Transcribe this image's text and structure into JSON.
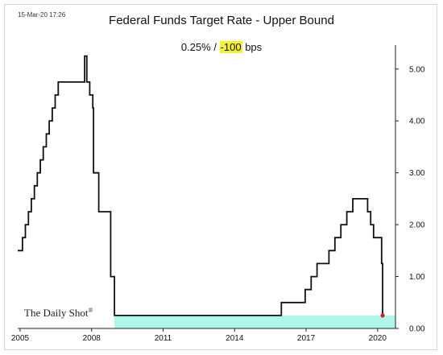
{
  "header": {
    "timestamp": "15-Mar-20 17:26",
    "title": "Federal Funds Target Rate - Upper Bound",
    "subtitle_value": "0.25%",
    "subtitle_sep": " / ",
    "subtitle_change": "-100",
    "subtitle_unit": " bps"
  },
  "brand": "The Daily Shot",
  "brand_mark": "®",
  "colors": {
    "line": "#111111",
    "band": "#aef5ea",
    "endpoint": "#cc2222",
    "highlight": "#f5f232"
  },
  "chart_data": {
    "type": "line",
    "title": "Federal Funds Target Rate - Upper Bound",
    "xlabel": "",
    "ylabel": "",
    "xlim": [
      2004.9,
      2020.75
    ],
    "ylim": [
      0,
      5.4
    ],
    "y_axis_position": "right",
    "x_ticks": [
      2005,
      2008,
      2011,
      2014,
      2017,
      2020
    ],
    "y_ticks": [
      0,
      1,
      2,
      3,
      4,
      5
    ],
    "y_tick_labels": [
      "0.00",
      "1.00",
      "2.00",
      "3.00",
      "4.00",
      "5.00"
    ],
    "grid": false,
    "shaded_band": {
      "y0": 0,
      "y1": 0.25,
      "x0": 2008.96,
      "x1": 2020.75
    },
    "series": [
      {
        "step": true,
        "x": [
          2004.9,
          2005.1,
          2005.22,
          2005.35,
          2005.47,
          2005.6,
          2005.72,
          2005.85,
          2005.97,
          2006.1,
          2006.22,
          2006.35,
          2006.47,
          2006.6,
          2007.71,
          2007.8,
          2007.92,
          2008.05,
          2008.08,
          2008.3,
          2008.8,
          2008.96,
          2015.96,
          2016.96,
          2017.21,
          2017.46,
          2017.96,
          2018.21,
          2018.46,
          2018.71,
          2018.96,
          2019.58,
          2019.71,
          2019.83,
          2020.17,
          2020.21
        ],
        "y": [
          1.5,
          1.75,
          2.0,
          2.25,
          2.5,
          2.75,
          3.0,
          3.25,
          3.5,
          3.75,
          4.0,
          4.25,
          4.5,
          4.75,
          5.25,
          4.75,
          4.5,
          4.25,
          3.0,
          2.25,
          1.0,
          0.25,
          0.5,
          0.75,
          1.0,
          1.25,
          1.5,
          1.75,
          2.0,
          2.25,
          2.5,
          2.25,
          2.0,
          1.75,
          1.25,
          0.25
        ]
      }
    ],
    "endpoint": {
      "x": 2020.21,
      "y": 0.25
    }
  }
}
